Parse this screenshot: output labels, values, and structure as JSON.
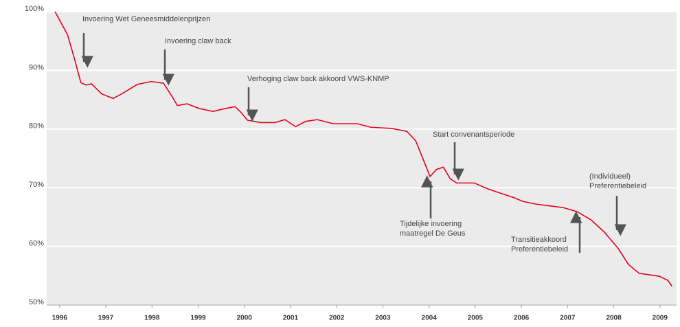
{
  "chart_data": {
    "type": "line",
    "x": [
      1995.9,
      1996.17,
      1996.32,
      1996.46,
      1996.57,
      1996.69,
      1996.91,
      1997.16,
      1997.39,
      1997.68,
      1997.98,
      1998.25,
      1998.43,
      1998.55,
      1998.76,
      1999.02,
      1999.32,
      1999.59,
      1999.8,
      1999.92,
      2000.07,
      2000.36,
      2000.66,
      2000.88,
      2001.11,
      2001.33,
      2001.58,
      2001.93,
      2002.45,
      2002.74,
      2003.19,
      2003.52,
      2003.71,
      2003.86,
      2004.02,
      2004.16,
      2004.31,
      2004.46,
      2004.6,
      2004.98,
      2005.27,
      2005.57,
      2005.84,
      2006.02,
      2006.31,
      2006.61,
      2006.91,
      2007.21,
      2007.51,
      2007.8,
      2008.1,
      2008.32,
      2008.55,
      2008.99,
      2009.17,
      2009.26
    ],
    "series": [
      {
        "color": "#e2001a",
        "values": [
          100,
          96.1,
          92.0,
          87.9,
          87.5,
          87.7,
          86.0,
          85.2,
          86.2,
          87.6,
          88.1,
          87.8,
          85.6,
          84.0,
          84.3,
          83.5,
          83.0,
          83.5,
          83.8,
          82.9,
          81.5,
          81.1,
          81.1,
          81.6,
          80.4,
          81.3,
          81.6,
          80.9,
          80.9,
          80.3,
          80.1,
          79.6,
          78.0,
          75.1,
          71.9,
          73.1,
          73.5,
          71.5,
          70.8,
          70.8,
          69.8,
          69.0,
          68.3,
          67.7,
          67.2,
          66.9,
          66.6,
          65.9,
          64.5,
          62.4,
          59.6,
          56.9,
          55.4,
          54.9,
          54.2,
          53.2
        ]
      }
    ],
    "xlim": [
      1995.72,
      2009.36
    ],
    "xticks": [
      1996,
      1997,
      1998,
      1999,
      2000,
      2001,
      2002,
      2003,
      2004,
      2005,
      2006,
      2007,
      2008,
      2009
    ],
    "ylim": [
      50,
      100
    ],
    "yticks": [
      {
        "value": 50,
        "label": "50%"
      },
      {
        "value": 60,
        "label": "60%"
      },
      {
        "value": 70,
        "label": "70%"
      },
      {
        "value": 80,
        "label": "80%"
      },
      {
        "value": 90,
        "label": "90%"
      },
      {
        "value": 100,
        "label": "100%"
      }
    ],
    "grid": true,
    "annotations": [
      {
        "text": [
          "Invoering Wet Geneesmiddelenprijzen"
        ]
      },
      {
        "text": [
          "Invoering claw back"
        ]
      },
      {
        "text": [
          "Verhoging claw back akkoord VWS-KNMP"
        ]
      },
      {
        "text": [
          "Start convenantsperiode"
        ]
      },
      {
        "text": [
          "Tijdelijke invoering",
          "maatregel De Geus"
        ]
      },
      {
        "text": [
          "Transitieakkoord",
          "Preferentiebeleid"
        ]
      },
      {
        "text": [
          "(Individueel)",
          "Preferentiebeleid"
        ]
      }
    ]
  }
}
